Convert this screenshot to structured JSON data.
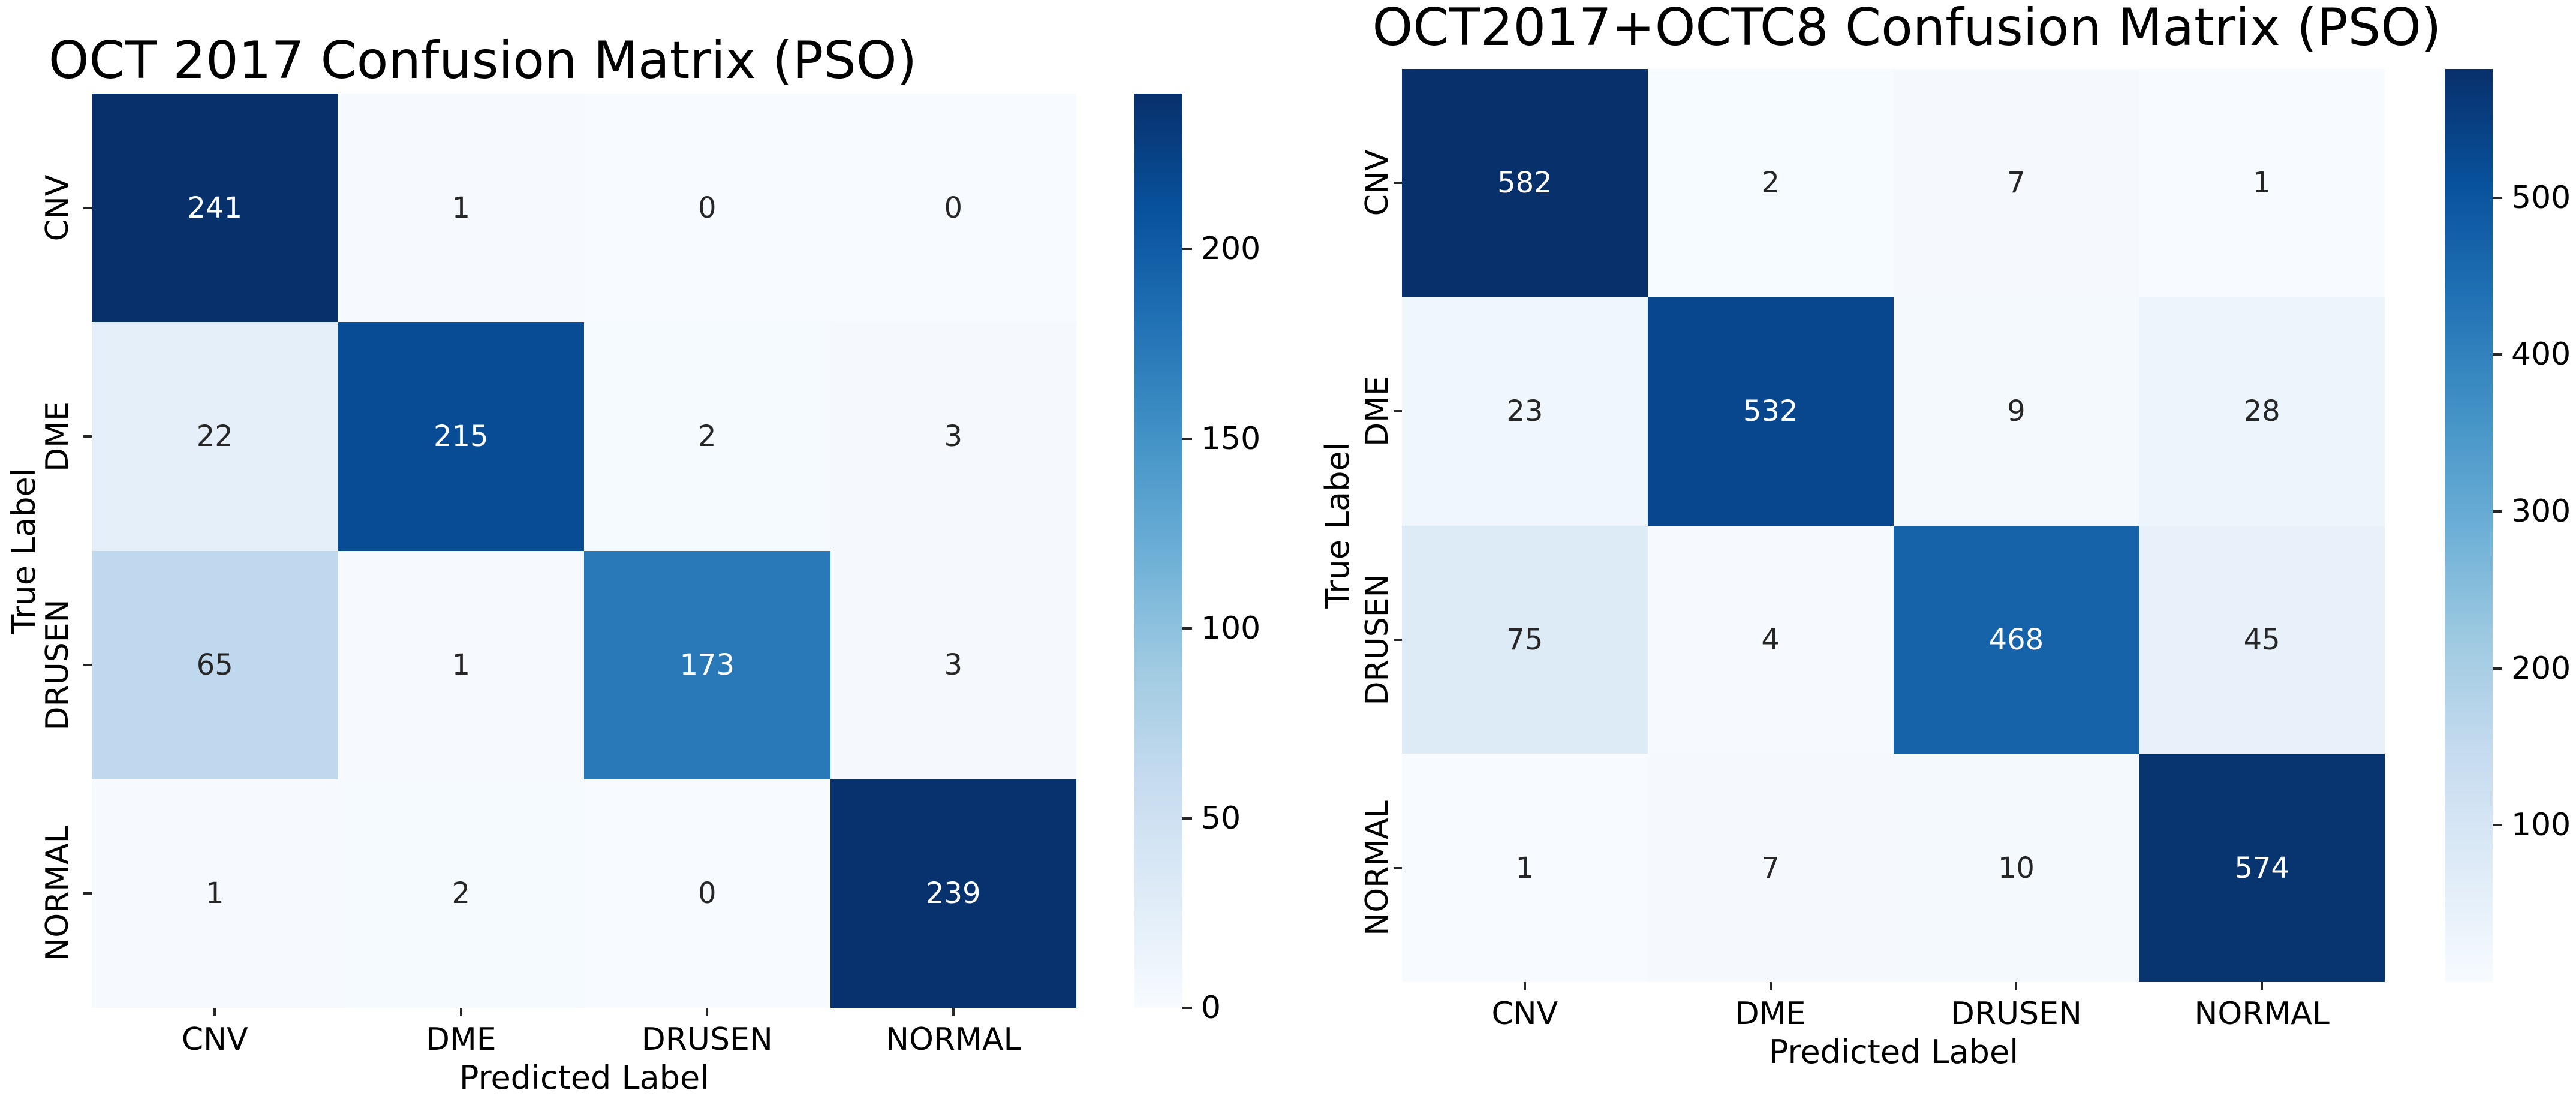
{
  "figure": {
    "background": "#ffffff"
  },
  "colormap": {
    "name": "Blues",
    "anchors": [
      "#f7fbff",
      "#deebf7",
      "#c6dbef",
      "#9ecae1",
      "#6baed6",
      "#4292c6",
      "#2171b5",
      "#08519c",
      "#08306b"
    ]
  },
  "text_colors": {
    "annotation_on_dark": "#ffffff",
    "annotation_on_light": "#262626",
    "axis_text": "#000000",
    "tick_mark": "#262626"
  },
  "chart_data": [
    {
      "type": "heatmap",
      "title": "OCT 2017 Confusion Matrix (PSO)",
      "xlabel": "Predicted Label",
      "ylabel": "True Label",
      "x_categories": [
        "CNV",
        "DME",
        "DRUSEN",
        "NORMAL"
      ],
      "y_categories": [
        "CNV",
        "DME",
        "DRUSEN",
        "NORMAL"
      ],
      "rows": [
        [
          241,
          1,
          0,
          0
        ],
        [
          22,
          215,
          2,
          3
        ],
        [
          65,
          1,
          173,
          3
        ],
        [
          1,
          2,
          0,
          239
        ]
      ],
      "vmin": 0,
      "vmax": 241,
      "colorbar_ticks": [
        0,
        50,
        100,
        150,
        200
      ],
      "legend_position": "right-colorbar",
      "grid": false
    },
    {
      "type": "heatmap",
      "title": "OCT2017+OCTC8 Confusion Matrix (PSO)",
      "xlabel": "Predicted Label",
      "ylabel": "True Label",
      "x_categories": [
        "CNV",
        "DME",
        "DRUSEN",
        "NORMAL"
      ],
      "y_categories": [
        "CNV",
        "DME",
        "DRUSEN",
        "NORMAL"
      ],
      "rows": [
        [
          582,
          2,
          7,
          1
        ],
        [
          23,
          532,
          9,
          28
        ],
        [
          75,
          4,
          468,
          45
        ],
        [
          1,
          7,
          10,
          574
        ]
      ],
      "vmin": 0,
      "vmax": 582,
      "colorbar_ticks": [
        100,
        200,
        300,
        400,
        500
      ],
      "legend_position": "right-colorbar",
      "grid": false
    }
  ]
}
